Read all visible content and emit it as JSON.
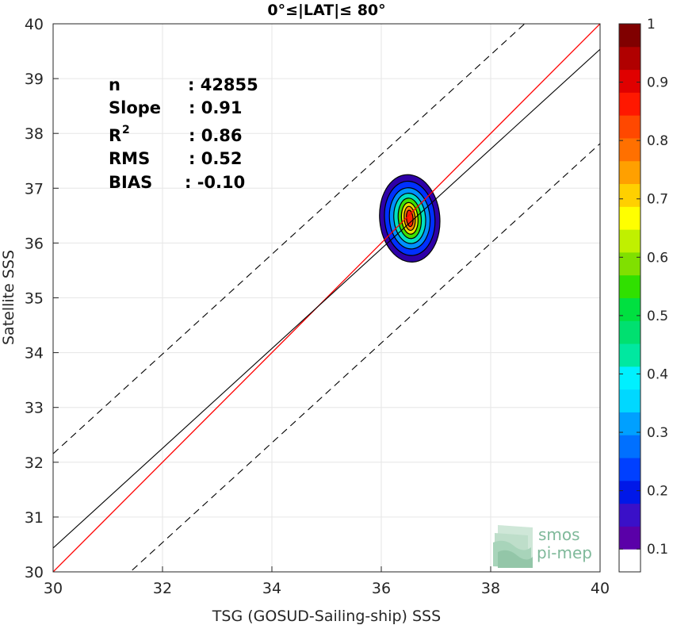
{
  "chart_data": {
    "type": "scatter",
    "title": "0°≤|LAT|≤ 80°",
    "xlabel": "TSG (GOSUD-Sailing-ship) SSS",
    "ylabel": "Satellite SSS",
    "xlim": [
      30,
      40
    ],
    "ylim": [
      30,
      40
    ],
    "xticks": [
      "30",
      "32",
      "34",
      "36",
      "38",
      "40"
    ],
    "yticks": [
      "30",
      "31",
      "32",
      "33",
      "34",
      "35",
      "36",
      "37",
      "38",
      "39",
      "40"
    ],
    "grid": true,
    "stats": [
      {
        "name": "n",
        "value": ": 42855"
      },
      {
        "name": "Slope",
        "value": ": 0.91"
      },
      {
        "name": "R",
        "sup": "2",
        "value": ": 0.86"
      },
      {
        "name": "RMS",
        "value": ": 0.52"
      },
      {
        "name": "BIAS",
        "value": ": -0.10"
      }
    ],
    "identity_line": {
      "slope": 1,
      "intercept": 0,
      "color": "#ff0000"
    },
    "regression_line": {
      "slope": 0.91,
      "intercept": 3.135,
      "color": "#000000"
    },
    "rms_band": {
      "offset": 1.72,
      "style": "dashed"
    },
    "density_contours": {
      "center": [
        36.52,
        36.45
      ],
      "levels": [
        0.05,
        0.15,
        0.3,
        0.45,
        0.6,
        0.7,
        0.8,
        0.9
      ],
      "colors": [
        "#2e00a8",
        "#0030ff",
        "#0090ff",
        "#00e0c0",
        "#40e000",
        "#e8e000",
        "#ff8800",
        "#ff2000"
      ],
      "radii_data": [
        [
          0.55,
          0.8
        ],
        [
          0.46,
          0.68
        ],
        [
          0.37,
          0.56
        ],
        [
          0.29,
          0.46
        ],
        [
          0.21,
          0.37
        ],
        [
          0.15,
          0.29
        ],
        [
          0.1,
          0.22
        ],
        [
          0.06,
          0.15
        ]
      ],
      "tilt_deg": -70
    },
    "colorbar": {
      "ticks": [
        "0.1",
        "0.2",
        "0.3",
        "0.4",
        "0.5",
        "0.6",
        "0.7",
        "0.8",
        "0.9",
        "1"
      ],
      "range": [
        0,
        1
      ],
      "colors": [
        "#ffffff",
        "#5a00a8",
        "#3a10c8",
        "#0018e8",
        "#0040ff",
        "#0070ff",
        "#00a0ff",
        "#00d8ff",
        "#00f0ff",
        "#00e8a0",
        "#00e070",
        "#00e040",
        "#30e000",
        "#80e000",
        "#c0f000",
        "#ffff00",
        "#ffd000",
        "#ffa000",
        "#ff7000",
        "#ff4800",
        "#ff1800",
        "#e00000",
        "#b00000",
        "#800000"
      ]
    },
    "logo": {
      "line1": "smos",
      "line2": "pi-mep"
    }
  }
}
